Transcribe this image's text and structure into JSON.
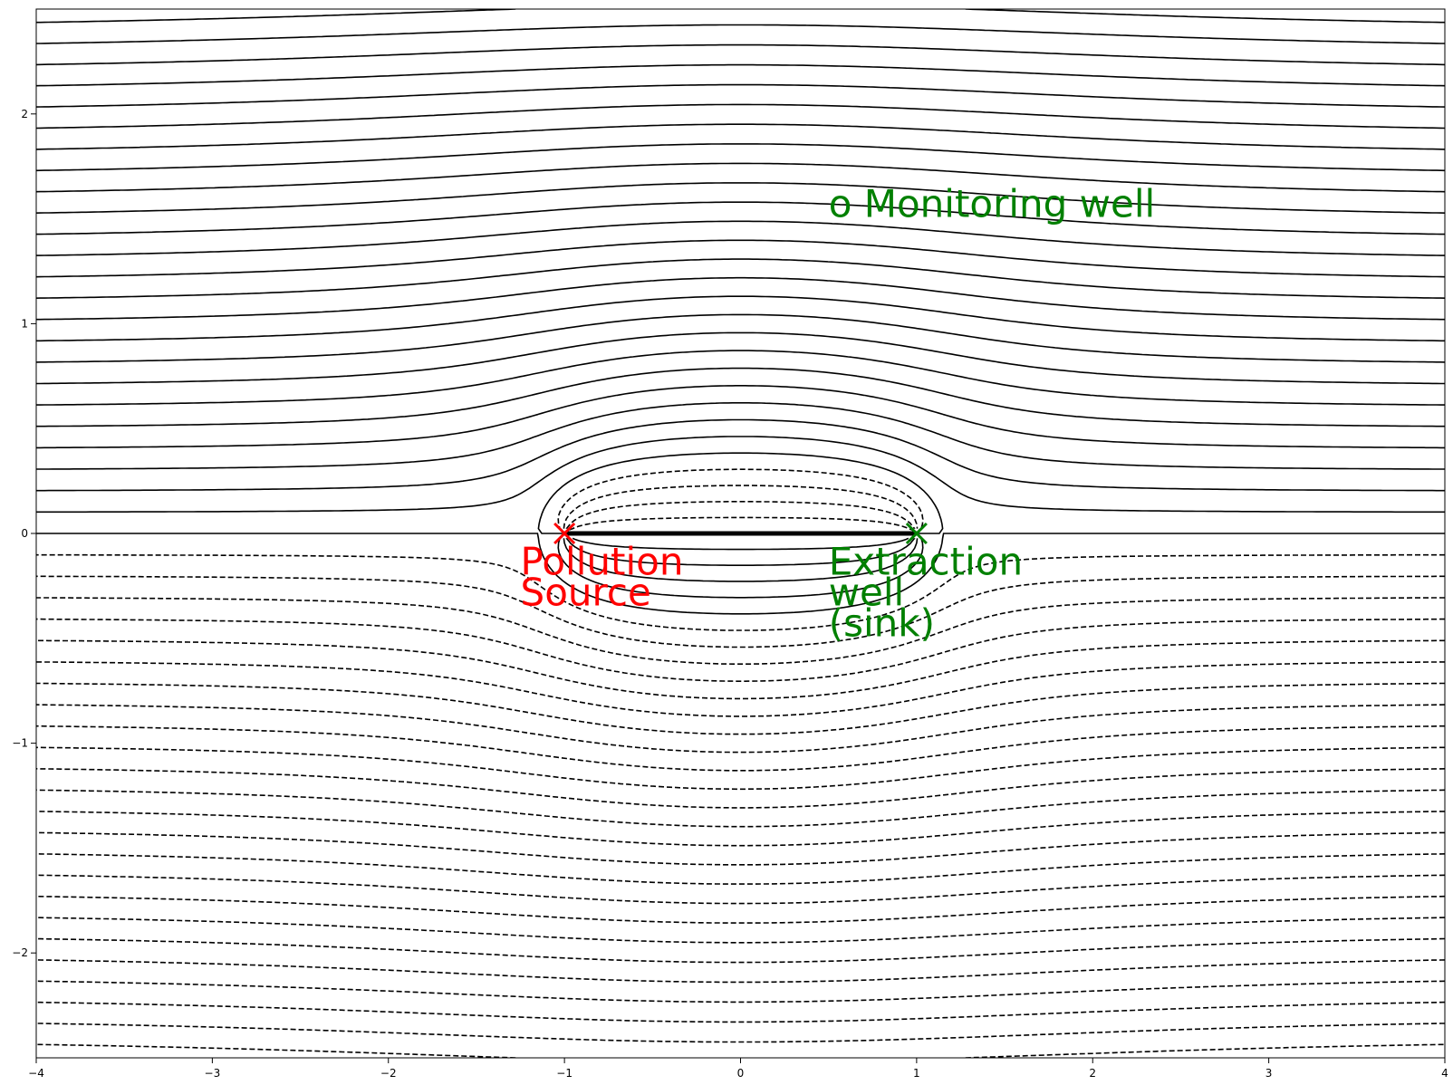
{
  "chart_data": {
    "type": "contour",
    "description_free": true,
    "xlim": [
      -4,
      4
    ],
    "ylim": [
      -2.5,
      2.5
    ],
    "x_ticks": [
      -4,
      -3,
      -2,
      -1,
      0,
      1,
      2,
      3,
      4
    ],
    "y_ticks": [
      -2,
      -1,
      0,
      1,
      2
    ],
    "x_tick_labels": [
      "−4",
      "−3",
      "−2",
      "−1",
      "0",
      "1",
      "2",
      "3",
      "4"
    ],
    "y_tick_labels": [
      "−2",
      "−1",
      "0",
      "1",
      "2"
    ],
    "grid": false,
    "flow": {
      "uniform_velocity": 1.0,
      "source": {
        "x": -1,
        "y": 0,
        "strength": 1.0
      },
      "sink": {
        "x": 1,
        "y": 0,
        "strength": 1.0
      },
      "monitoring_well": {
        "x": 0.5,
        "y": 1.5
      }
    },
    "contour_levels": {
      "min": -3.0,
      "max": 3.0,
      "step": 0.1,
      "negative_style": "dashed",
      "positive_style": "solid",
      "color": "#000000"
    },
    "markers": [
      {
        "name": "source-marker",
        "x": -1,
        "y": 0,
        "symbol": "x",
        "color": "#ff0000"
      },
      {
        "name": "sink-marker",
        "x": 1,
        "y": 0,
        "symbol": "x",
        "color": "#008000"
      }
    ],
    "annotations": [
      {
        "name": "pollution-source-label",
        "lines": [
          "Pollution",
          "Source"
        ],
        "x": -1.25,
        "y": -0.05,
        "color": "#ff0000"
      },
      {
        "name": "extraction-well-label",
        "lines": [
          "Extraction",
          "well",
          "(sink)"
        ],
        "x": 0.5,
        "y": -0.05,
        "color": "#008000"
      },
      {
        "name": "monitoring-well-label",
        "lines": [
          "o Monitoring well"
        ],
        "x": 0.5,
        "y": 1.5,
        "color": "#008000"
      }
    ]
  }
}
